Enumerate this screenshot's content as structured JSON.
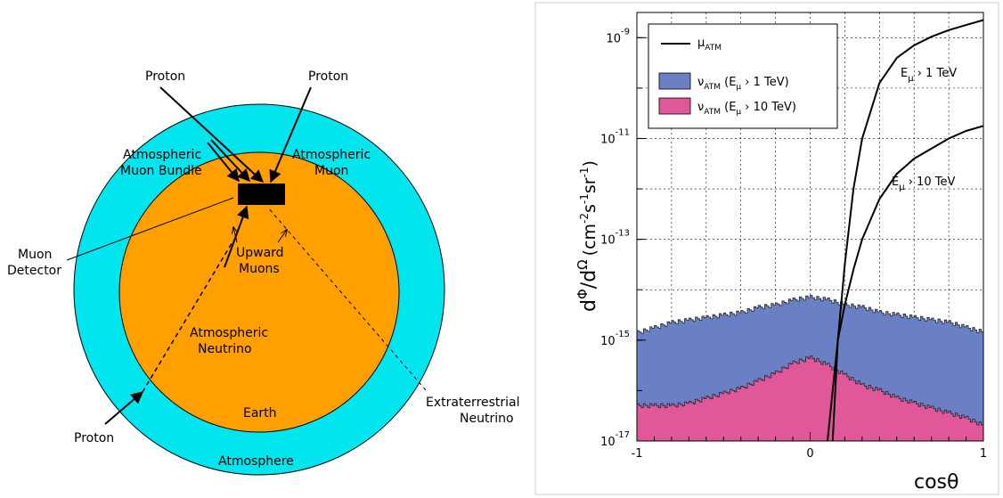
{
  "diagram": {
    "labels": {
      "proton_left": "Proton",
      "proton_right": "Proton",
      "proton_bottom": "Proton",
      "muon_bundle_1": "Atmospheric",
      "muon_bundle_2": "Muon Bundle",
      "atm_muon_1": "Atmospheric",
      "atm_muon_2": "Muon",
      "detector_1": "Muon",
      "detector_2": "Detector",
      "upward_1": "Upward",
      "upward_2": "Muons",
      "atm_nu_1": "Atmospheric",
      "atm_nu_2": "Neutrino",
      "earth": "Earth",
      "extra_1": "Extraterrestrial",
      "extra_2": "Neutrino",
      "atmosphere": "Atmosphere"
    },
    "colors": {
      "atmosphere": "#00e5ee",
      "earth": "#ff9f00",
      "detector": "#000000"
    }
  },
  "chart_data": {
    "type": "line",
    "title": "",
    "xlabel": "cosθ",
    "ylabel": "dΦ/dΩ (cm⁻²s⁻¹sr⁻¹)",
    "ylabel_parts": {
      "main_d": "d",
      "phi": "Φ",
      "slash": "/d",
      "omega": "Ω",
      "unit_open": "(cm",
      "exp1": "-2",
      "s": "s",
      "exp2": "-1",
      "sr": "sr",
      "exp3": "-1",
      "close": ")"
    },
    "xlim": [
      -1,
      1
    ],
    "ylim_log10": [
      -17,
      -8.5
    ],
    "x_ticks": [
      -1,
      0,
      1
    ],
    "x_tick_labels": [
      "-1",
      "0",
      "1"
    ],
    "y_ticks": [
      {
        "base": "10",
        "exp": "-9"
      },
      {
        "base": "10",
        "exp": "-11"
      },
      {
        "base": "10",
        "exp": "-13"
      },
      {
        "base": "10",
        "exp": "-15"
      },
      {
        "base": "10",
        "exp": "-17"
      }
    ],
    "y_tick_values_log10": [
      -9,
      -11,
      -13,
      -15,
      -17
    ],
    "grid": true,
    "legend_position": "top-left",
    "legend": [
      {
        "symbol": "line",
        "color": "#000000",
        "main": "μ",
        "sub": "ATM",
        "rest": ""
      },
      {
        "symbol": "box",
        "color": "#6a7fc4",
        "main": "ν",
        "sub": "ATM",
        "rest": " (E",
        "sub2": "μ",
        "tail": " › 1 TeV)"
      },
      {
        "symbol": "box",
        "color": "#e0579a",
        "main": "ν",
        "sub": "ATM",
        "rest": " (E",
        "sub2": "μ",
        "tail": " › 10 TeV)"
      }
    ],
    "annotations": [
      {
        "main": "E",
        "sub": "μ",
        "tail": " › 1 TeV"
      },
      {
        "main": "E",
        "sub": "μ",
        "tail": " › 10 TeV"
      }
    ],
    "series": [
      {
        "name": "μ ATM (Eμ > 1 TeV)",
        "kind": "line",
        "color": "#000000",
        "x": [
          0.13,
          0.16,
          0.2,
          0.25,
          0.3,
          0.4,
          0.5,
          0.6,
          0.7,
          0.8,
          0.9,
          1.0
        ],
        "log10_y": [
          -17.0,
          -15.0,
          -13.5,
          -12.0,
          -11.0,
          -9.9,
          -9.4,
          -9.15,
          -8.98,
          -8.85,
          -8.75,
          -8.65
        ]
      },
      {
        "name": "μ ATM (Eμ > 10 TeV)",
        "kind": "line",
        "color": "#000000",
        "x": [
          0.1,
          0.13,
          0.16,
          0.2,
          0.25,
          0.3,
          0.4,
          0.5,
          0.6,
          0.7,
          0.8,
          0.9,
          1.0
        ],
        "log10_y": [
          -17.0,
          -16.0,
          -15.0,
          -14.3,
          -13.6,
          -13.0,
          -12.2,
          -11.7,
          -11.4,
          -11.2,
          -11.0,
          -10.85,
          -10.75
        ]
      },
      {
        "name": "ν ATM (Eμ > 1 TeV)",
        "kind": "area",
        "color": "#6a7fc4",
        "x": [
          -1,
          -0.9,
          -0.8,
          -0.7,
          -0.6,
          -0.5,
          -0.4,
          -0.3,
          -0.2,
          -0.1,
          0,
          0.1,
          0.2,
          0.3,
          0.4,
          0.5,
          0.6,
          0.7,
          0.8,
          0.9,
          1.0
        ],
        "log10_y": [
          -14.85,
          -14.75,
          -14.65,
          -14.6,
          -14.55,
          -14.5,
          -14.45,
          -14.35,
          -14.3,
          -14.2,
          -14.15,
          -14.2,
          -14.3,
          -14.35,
          -14.45,
          -14.5,
          -14.55,
          -14.6,
          -14.65,
          -14.75,
          -14.85
        ]
      },
      {
        "name": "ν ATM (Eμ > 10 TeV)",
        "kind": "area",
        "color": "#e0579a",
        "x": [
          -1,
          -0.9,
          -0.8,
          -0.7,
          -0.6,
          -0.5,
          -0.4,
          -0.3,
          -0.2,
          -0.1,
          0,
          0.1,
          0.2,
          0.3,
          0.4,
          0.5,
          0.6,
          0.7,
          0.8,
          0.9,
          1.0
        ],
        "log10_y": [
          -16.3,
          -16.3,
          -16.3,
          -16.25,
          -16.15,
          -16.05,
          -15.95,
          -15.8,
          -15.65,
          -15.45,
          -15.35,
          -15.5,
          -15.7,
          -15.9,
          -16.0,
          -16.15,
          -16.25,
          -16.35,
          -16.45,
          -16.55,
          -16.7
        ]
      }
    ]
  }
}
